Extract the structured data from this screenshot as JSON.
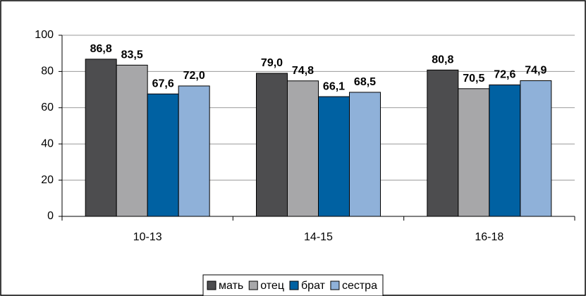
{
  "chart_data": {
    "type": "bar",
    "categories": [
      "10-13",
      "14-15",
      "16-18"
    ],
    "series": [
      {
        "name": "мать",
        "color": "#4d4d4f",
        "values": [
          86.8,
          79.0,
          80.8
        ],
        "value_labels": [
          "86,8",
          "79,0",
          "80,8"
        ]
      },
      {
        "name": "отец",
        "color": "#a7a7a9",
        "values": [
          83.5,
          74.8,
          70.5
        ],
        "value_labels": [
          "83,5",
          "74,8",
          "70,5"
        ]
      },
      {
        "name": "брат",
        "color": "#0061a2",
        "values": [
          67.6,
          66.1,
          72.6
        ],
        "value_labels": [
          "67,6",
          "66,1",
          "72,6"
        ]
      },
      {
        "name": "сестра",
        "color": "#8fb1d9",
        "values": [
          72.0,
          68.5,
          74.9
        ],
        "value_labels": [
          "72,0",
          "68,5",
          "74,9"
        ]
      }
    ],
    "ylim": [
      0,
      100
    ],
    "yticks": [
      0,
      20,
      40,
      60,
      80,
      100
    ],
    "grid": true,
    "legend": "bottom"
  }
}
